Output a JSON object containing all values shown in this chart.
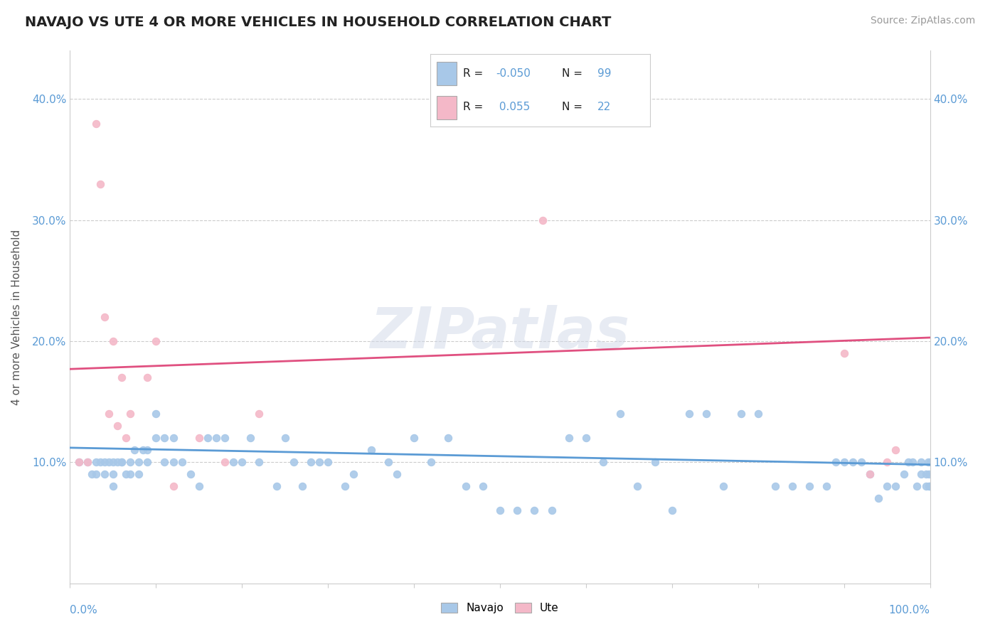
{
  "title": "NAVAJO VS UTE 4 OR MORE VEHICLES IN HOUSEHOLD CORRELATION CHART",
  "source_text": "Source: ZipAtlas.com",
  "ylabel": "4 or more Vehicles in Household",
  "xmin": 0.0,
  "xmax": 1.0,
  "ymin": 0.0,
  "ymax": 0.44,
  "yticks": [
    0.1,
    0.2,
    0.3,
    0.4
  ],
  "ytick_labels": [
    "10.0%",
    "20.0%",
    "30.0%",
    "40.0%"
  ],
  "navajo_color": "#a8c8e8",
  "navajo_line_color": "#5b9bd5",
  "ute_color": "#f4b8c8",
  "ute_line_color": "#e05080",
  "navajo_points_x": [
    0.01,
    0.02,
    0.025,
    0.03,
    0.03,
    0.035,
    0.04,
    0.04,
    0.045,
    0.05,
    0.05,
    0.05,
    0.055,
    0.06,
    0.06,
    0.065,
    0.07,
    0.07,
    0.075,
    0.08,
    0.08,
    0.085,
    0.09,
    0.09,
    0.1,
    0.1,
    0.11,
    0.11,
    0.12,
    0.12,
    0.13,
    0.14,
    0.15,
    0.16,
    0.17,
    0.18,
    0.19,
    0.2,
    0.21,
    0.22,
    0.24,
    0.25,
    0.26,
    0.27,
    0.28,
    0.29,
    0.3,
    0.32,
    0.33,
    0.35,
    0.37,
    0.38,
    0.4,
    0.42,
    0.44,
    0.46,
    0.48,
    0.5,
    0.52,
    0.54,
    0.56,
    0.58,
    0.6,
    0.62,
    0.64,
    0.66,
    0.68,
    0.7,
    0.72,
    0.74,
    0.76,
    0.78,
    0.8,
    0.82,
    0.84,
    0.86,
    0.88,
    0.89,
    0.9,
    0.91,
    0.92,
    0.93,
    0.94,
    0.95,
    0.96,
    0.97,
    0.975,
    0.98,
    0.985,
    0.99,
    0.99,
    0.995,
    0.995,
    0.998,
    0.999,
    0.999,
    1.0,
    1.0,
    1.0
  ],
  "navajo_points_y": [
    0.1,
    0.1,
    0.09,
    0.09,
    0.1,
    0.1,
    0.1,
    0.09,
    0.1,
    0.1,
    0.08,
    0.09,
    0.1,
    0.1,
    0.1,
    0.09,
    0.1,
    0.09,
    0.11,
    0.09,
    0.1,
    0.11,
    0.11,
    0.1,
    0.14,
    0.12,
    0.12,
    0.1,
    0.12,
    0.1,
    0.1,
    0.09,
    0.08,
    0.12,
    0.12,
    0.12,
    0.1,
    0.1,
    0.12,
    0.1,
    0.08,
    0.12,
    0.1,
    0.08,
    0.1,
    0.1,
    0.1,
    0.08,
    0.09,
    0.11,
    0.1,
    0.09,
    0.12,
    0.1,
    0.12,
    0.08,
    0.08,
    0.06,
    0.06,
    0.06,
    0.06,
    0.12,
    0.12,
    0.1,
    0.14,
    0.08,
    0.1,
    0.06,
    0.14,
    0.14,
    0.08,
    0.14,
    0.14,
    0.08,
    0.08,
    0.08,
    0.08,
    0.1,
    0.1,
    0.1,
    0.1,
    0.09,
    0.07,
    0.08,
    0.08,
    0.09,
    0.1,
    0.1,
    0.08,
    0.1,
    0.09,
    0.08,
    0.09,
    0.1,
    0.08,
    0.09,
    0.08,
    0.1,
    0.08
  ],
  "ute_points_x": [
    0.01,
    0.02,
    0.03,
    0.035,
    0.04,
    0.045,
    0.05,
    0.055,
    0.06,
    0.065,
    0.07,
    0.09,
    0.1,
    0.12,
    0.15,
    0.18,
    0.22,
    0.55,
    0.9,
    0.93,
    0.95,
    0.96
  ],
  "ute_points_y": [
    0.1,
    0.1,
    0.38,
    0.33,
    0.22,
    0.14,
    0.2,
    0.13,
    0.17,
    0.12,
    0.14,
    0.17,
    0.2,
    0.08,
    0.12,
    0.1,
    0.14,
    0.3,
    0.19,
    0.09,
    0.1,
    0.11
  ],
  "navajo_trend_x0": 0.0,
  "navajo_trend_x1": 1.0,
  "navajo_trend_y0": 0.112,
  "navajo_trend_y1": 0.098,
  "ute_trend_x0": 0.0,
  "ute_trend_x1": 1.0,
  "ute_trend_y0": 0.177,
  "ute_trend_y1": 0.203,
  "background_color": "#ffffff",
  "watermark_text": "ZIPatlas"
}
